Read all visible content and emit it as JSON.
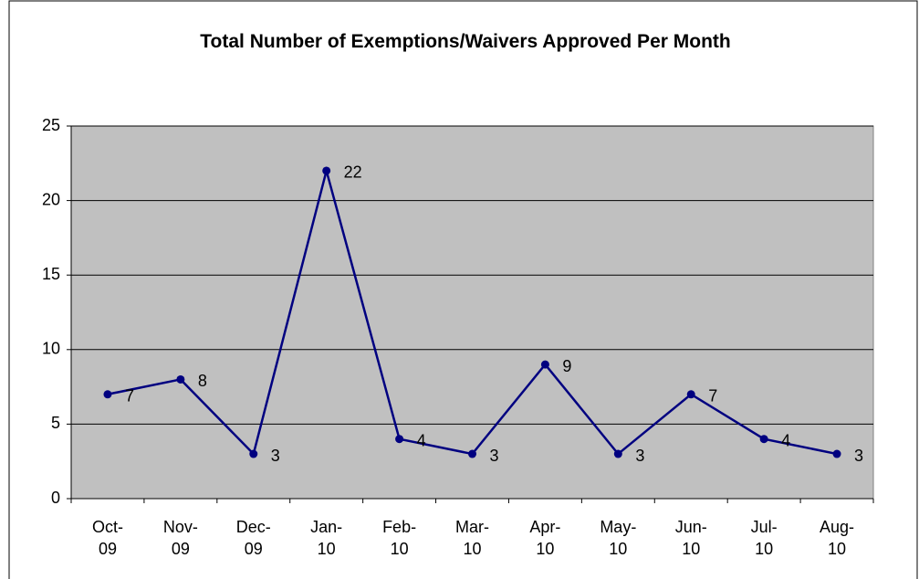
{
  "chart_data": {
    "type": "line",
    "title": "Total Number of Exemptions/Waivers Approved Per Month",
    "categories": [
      "Oct-09",
      "Nov-09",
      "Dec-09",
      "Jan-10",
      "Feb-10",
      "Mar-10",
      "Apr-10",
      "May-10",
      "Jun-10",
      "Jul-10",
      "Aug-10"
    ],
    "values": [
      7,
      8,
      3,
      22,
      4,
      3,
      9,
      3,
      7,
      4,
      3
    ],
    "color": "#000080",
    "ylim": [
      0,
      25
    ],
    "yticks": [
      0,
      5,
      10,
      15,
      20,
      25
    ],
    "grid": true
  }
}
